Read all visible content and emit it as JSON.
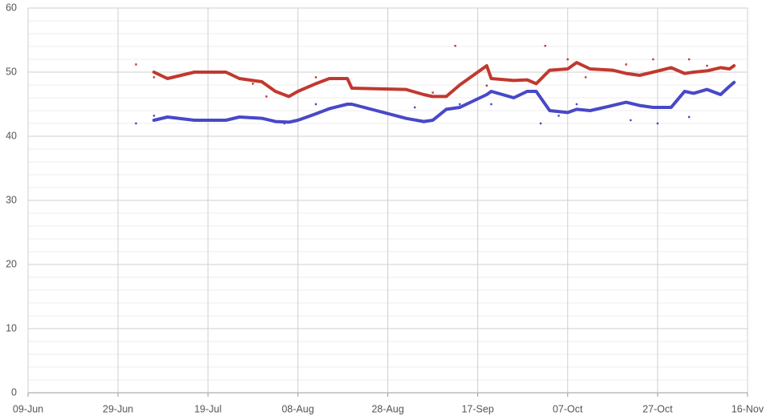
{
  "chart_data": {
    "type": "line",
    "xlim": [
      "09-Jun",
      "16-Nov"
    ],
    "xticks": [
      "09-Jun",
      "29-Jun",
      "19-Jul",
      "08-Aug",
      "28-Aug",
      "17-Sep",
      "07-Oct",
      "27-Oct",
      "16-Nov"
    ],
    "ylim": [
      0,
      60
    ],
    "yticks": [
      0,
      10,
      20,
      30,
      40,
      50,
      60
    ],
    "minor_grid_step": 2,
    "grid": true,
    "x": [
      "07-Jul",
      "10-Jul",
      "16-Jul",
      "23-Jul",
      "26-Jul",
      "31-Jul",
      "03-Aug",
      "06-Aug",
      "08-Aug",
      "12-Aug",
      "15-Aug",
      "19-Aug",
      "20-Aug",
      "01-Sep",
      "05-Sep",
      "07-Sep",
      "10-Sep",
      "13-Sep",
      "16-Sep",
      "19-Sep",
      "20-Sep",
      "25-Sep",
      "28-Sep",
      "30-Sep",
      "03-Oct",
      "07-Oct",
      "09-Oct",
      "12-Oct",
      "17-Oct",
      "20-Oct",
      "23-Oct",
      "26-Oct",
      "30-Oct",
      "02-Nov",
      "04-Nov",
      "07-Nov",
      "10-Nov",
      "12-Nov",
      "13-Nov"
    ],
    "series": [
      {
        "color": "#c0392f",
        "values": [
          50,
          49,
          50,
          50,
          49,
          48.5,
          47,
          46.2,
          47,
          48.2,
          49,
          49,
          47.5,
          47.3,
          46.5,
          46.2,
          46.2,
          48,
          49.5,
          51,
          49,
          48.7,
          48.8,
          48.2,
          50.3,
          50.5,
          51.5,
          50.5,
          50.3,
          49.8,
          49.5,
          50,
          50.7,
          49.8,
          50,
          50.2,
          50.7,
          50.5,
          51
        ]
      },
      {
        "color": "#4848c8",
        "values": [
          42.5,
          43,
          42.5,
          42.5,
          43,
          42.8,
          42.3,
          42.2,
          42.5,
          43.5,
          44.3,
          45,
          45,
          42.8,
          42.3,
          42.5,
          44.2,
          44.5,
          45.5,
          46.5,
          47,
          46,
          47,
          47,
          44,
          43.7,
          44.2,
          44,
          44.8,
          45.3,
          44.8,
          44.5,
          44.5,
          47,
          46.7,
          47.3,
          46.5,
          47.8,
          48.4
        ]
      }
    ],
    "markers": [
      {
        "color": "#c0392f",
        "x": [
          "03-Jul",
          "07-Jul",
          "29-Jul",
          "01-Aug",
          "12-Aug",
          "07-Sep",
          "12-Sep",
          "19-Sep",
          "02-Oct",
          "07-Oct",
          "11-Oct",
          "20-Oct",
          "26-Oct",
          "03-Nov",
          "07-Nov"
        ],
        "values": [
          51.2,
          49.2,
          48.2,
          46.2,
          49.2,
          46.8,
          54.1,
          47.9,
          54.1,
          52,
          49.2,
          51.2,
          52,
          52,
          51
        ]
      },
      {
        "color": "#4848c8",
        "x": [
          "03-Jul",
          "07-Jul",
          "05-Aug",
          "12-Aug",
          "03-Sep",
          "13-Sep",
          "20-Sep",
          "01-Oct",
          "05-Oct",
          "09-Oct",
          "21-Oct",
          "27-Oct",
          "03-Nov"
        ],
        "values": [
          42,
          43.2,
          42,
          45,
          44.5,
          45,
          45,
          42,
          43.2,
          45,
          42.5,
          42,
          43
        ]
      }
    ]
  }
}
